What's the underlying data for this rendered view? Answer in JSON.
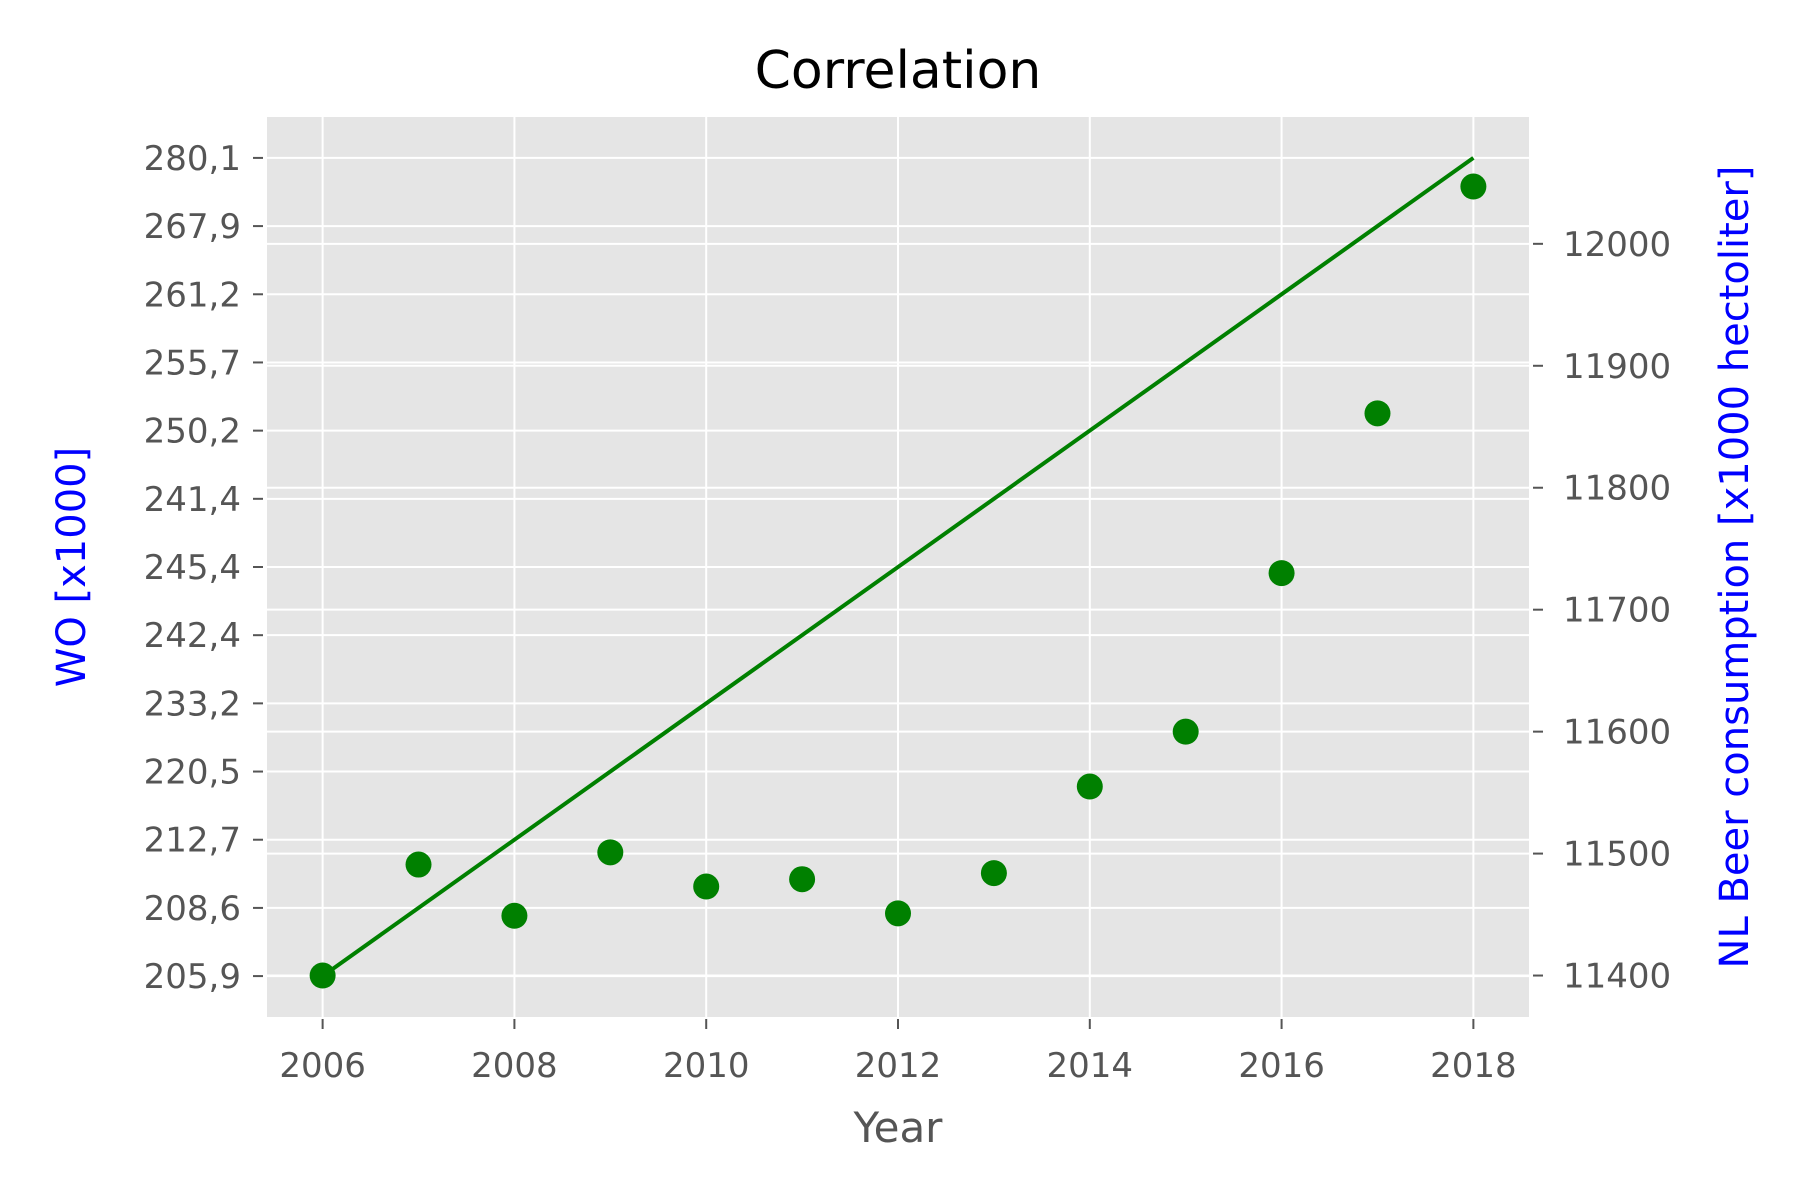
{
  "chart_data": {
    "type": "line",
    "title": "Correlation",
    "xlabel": "Year",
    "ylabel_left": "WO [x1000]",
    "ylabel_right": "NL Beer consumption [x1000 hectoliter]",
    "xlim": [
      2005.42,
      2018.58
    ],
    "x_ticks": [
      2006,
      2008,
      2010,
      2012,
      2014,
      2016,
      2018
    ],
    "left_ticks": [
      {
        "label": "205,9",
        "index": 0
      },
      {
        "label": "208,6",
        "index": 1
      },
      {
        "label": "212,7",
        "index": 2
      },
      {
        "label": "220,5",
        "index": 3
      },
      {
        "label": "233,2",
        "index": 4
      },
      {
        "label": "242,4",
        "index": 5
      },
      {
        "label": "245,4",
        "index": 6
      },
      {
        "label": "241,4",
        "index": 7
      },
      {
        "label": "250,2",
        "index": 8
      },
      {
        "label": "255,7",
        "index": 9
      },
      {
        "label": "261,2",
        "index": 10
      },
      {
        "label": "267,9",
        "index": 11
      },
      {
        "label": "280,1",
        "index": 12
      }
    ],
    "left_ylim": [
      -0.6,
      12.6
    ],
    "right_ticks": [
      11400,
      11500,
      11600,
      11700,
      11800,
      11900,
      12000
    ],
    "right_ylim": [
      11366,
      12104
    ],
    "series": [
      {
        "axis": "left",
        "style": "line",
        "color": "#008000",
        "x": [
          2006,
          2018
        ],
        "y": [
          0,
          12
        ]
      },
      {
        "axis": "right",
        "style": "scatter",
        "color": "#008000",
        "x": [
          2006,
          2007,
          2008,
          2009,
          2010,
          2011,
          2012,
          2013,
          2014,
          2015,
          2016,
          2017,
          2018
        ],
        "y": [
          11400,
          11491,
          11449,
          11501,
          11473,
          11479,
          11451,
          11484,
          11555,
          11600,
          11730,
          11861,
          12047
        ]
      }
    ],
    "grid": true,
    "legend": "none",
    "colors": {
      "axes_bg": "#e5e5e5",
      "grid": "#ffffff",
      "tick_text": "#555555",
      "label_left": "#0000ff",
      "label_right": "#0000ff",
      "title": "#000000",
      "xlabel": "#555555"
    }
  }
}
